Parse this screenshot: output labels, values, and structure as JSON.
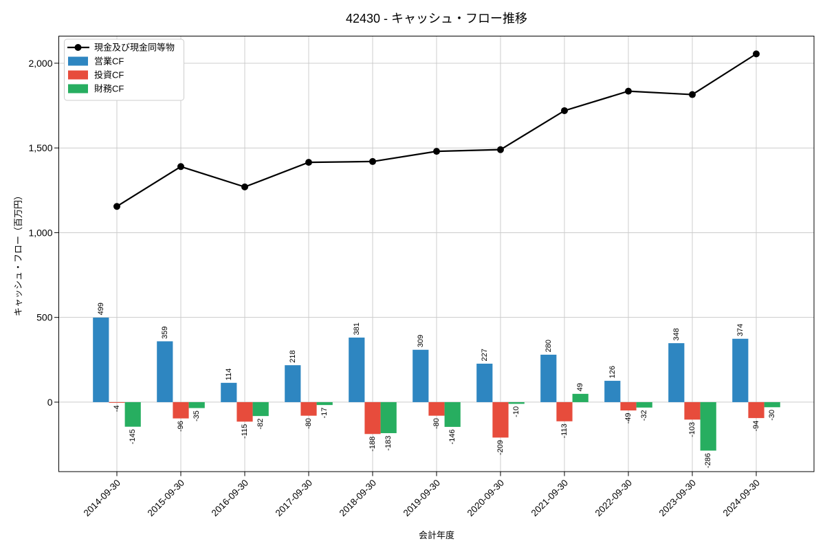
{
  "chart_data": {
    "type": "bar",
    "subtype": "grouped-bars-with-line-overlay",
    "title": "42430 - キャッシュ・フロー推移",
    "xlabel": "会計年度",
    "ylabel": "キャッシュ・フロー（百万円）",
    "categories": [
      "2014-09-30",
      "2015-09-30",
      "2016-09-30",
      "2017-09-30",
      "2018-09-30",
      "2019-09-30",
      "2020-09-30",
      "2021-09-30",
      "2022-09-30",
      "2023-09-30",
      "2024-09-30"
    ],
    "series": [
      {
        "key": "cash-and-equivalents",
        "name": "現金及び現金同等物",
        "kind": "line",
        "color": "#000000",
        "values": [
          1155,
          1390,
          1270,
          1415,
          1420,
          1480,
          1490,
          1720,
          1835,
          1815,
          2055
        ]
      },
      {
        "key": "operating-cf",
        "name": "営業CF",
        "kind": "bar",
        "color": "#2e86c1",
        "values": [
          499,
          359,
          114,
          218,
          381,
          309,
          227,
          280,
          126,
          348,
          374
        ]
      },
      {
        "key": "investing-cf",
        "name": "投資CF",
        "kind": "bar",
        "color": "#e74c3c",
        "values": [
          -4,
          -96,
          -115,
          -80,
          -188,
          -80,
          -209,
          -113,
          -49,
          -103,
          -94
        ]
      },
      {
        "key": "financing-cf",
        "name": "財務CF",
        "kind": "bar",
        "color": "#27ae60",
        "values": [
          -145,
          -35,
          -82,
          -17,
          -183,
          -146,
          -10,
          49,
          -32,
          -286,
          -30
        ]
      }
    ],
    "bar_value_labels": true,
    "yticks": [
      0,
      500,
      1000,
      1500,
      2000
    ],
    "ytick_labels": [
      "0",
      "500",
      "1,000",
      "1,500",
      "2,000"
    ],
    "ylim": [
      -410,
      2160
    ],
    "grid": true,
    "grid_color": "#cccccc",
    "spine_color": "#000000",
    "legend_position": "upper-left",
    "xtick_rotation_deg": 45,
    "bar_label_rotation_deg": 90
  }
}
